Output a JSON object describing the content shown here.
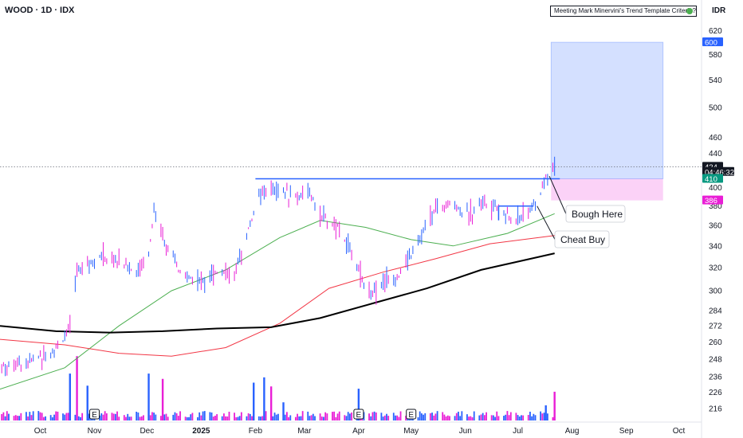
{
  "header": {
    "symbol_title": "WOOD · 1D · IDX",
    "currency": "IDR",
    "indicator_label": "Meeting Mark Minervini's Trend Template Criteria?"
  },
  "chart_data": {
    "type": "candlestick",
    "title": "WOOD · 1D · IDX",
    "y_scale": "log",
    "ylim": [
      208,
      640
    ],
    "y_ticks": [
      620,
      580,
      540,
      500,
      460,
      440,
      400,
      380,
      360,
      340,
      320,
      300,
      284,
      272,
      260,
      248,
      236,
      226,
      216
    ],
    "x_ticks": [
      "Oct",
      "Nov",
      "Dec",
      "2025",
      "Feb",
      "Mar",
      "Apr",
      "May",
      "Jun",
      "Jul",
      "Aug",
      "Sep",
      "Oct"
    ],
    "x_tick_dates": [
      "2024-10-01",
      "2024-11-01",
      "2024-12-01",
      "2025-01-01",
      "2025-02-01",
      "2025-03-01",
      "2025-04-01",
      "2025-05-01",
      "2025-06-01",
      "2025-07-01",
      "2025-08-01",
      "2025-09-01",
      "2025-10-01"
    ],
    "xlim": [
      "2024-09-08",
      "2025-10-14"
    ],
    "price_series": [
      {
        "date": "2024-09-09",
        "value": 243
      },
      {
        "date": "2024-09-23",
        "value": 246
      },
      {
        "date": "2024-10-07",
        "value": 252
      },
      {
        "date": "2024-10-14",
        "value": 262
      },
      {
        "date": "2024-10-18",
        "value": 270
      },
      {
        "date": "2024-10-22",
        "value": 318
      },
      {
        "date": "2024-10-28",
        "value": 325
      },
      {
        "date": "2024-11-05",
        "value": 330
      },
      {
        "date": "2024-11-15",
        "value": 326
      },
      {
        "date": "2024-11-25",
        "value": 316
      },
      {
        "date": "2024-12-02",
        "value": 333
      },
      {
        "date": "2024-12-05",
        "value": 375
      },
      {
        "date": "2024-12-12",
        "value": 340
      },
      {
        "date": "2024-12-20",
        "value": 315
      },
      {
        "date": "2024-12-30",
        "value": 308
      },
      {
        "date": "2025-01-10",
        "value": 318
      },
      {
        "date": "2025-01-20",
        "value": 312
      },
      {
        "date": "2025-01-27",
        "value": 350
      },
      {
        "date": "2025-02-03",
        "value": 392
      },
      {
        "date": "2025-02-14",
        "value": 398
      },
      {
        "date": "2025-02-24",
        "value": 390
      },
      {
        "date": "2025-03-03",
        "value": 395
      },
      {
        "date": "2025-03-10",
        "value": 370
      },
      {
        "date": "2025-03-20",
        "value": 357
      },
      {
        "date": "2025-03-28",
        "value": 335
      },
      {
        "date": "2025-04-03",
        "value": 310
      },
      {
        "date": "2025-04-08",
        "value": 298
      },
      {
        "date": "2025-04-15",
        "value": 308
      },
      {
        "date": "2025-04-25",
        "value": 315
      },
      {
        "date": "2025-05-05",
        "value": 345
      },
      {
        "date": "2025-05-15",
        "value": 378
      },
      {
        "date": "2025-05-25",
        "value": 382
      },
      {
        "date": "2025-06-02",
        "value": 370
      },
      {
        "date": "2025-06-10",
        "value": 385
      },
      {
        "date": "2025-06-20",
        "value": 378
      },
      {
        "date": "2025-06-27",
        "value": 365
      },
      {
        "date": "2025-07-05",
        "value": 372
      },
      {
        "date": "2025-07-10",
        "value": 380
      },
      {
        "date": "2025-07-14",
        "value": 395
      },
      {
        "date": "2025-07-18",
        "value": 415
      },
      {
        "date": "2025-07-22",
        "value": 424
      }
    ],
    "volume": {
      "spikes": [
        {
          "date": "2024-10-18",
          "level": 0.62
        },
        {
          "date": "2024-10-22",
          "level": 0.85
        },
        {
          "date": "2024-10-28",
          "level": 0.46
        },
        {
          "date": "2024-12-02",
          "level": 0.62
        },
        {
          "date": "2024-12-10",
          "level": 0.55
        },
        {
          "date": "2025-01-31",
          "level": 0.5
        },
        {
          "date": "2025-02-06",
          "level": 0.57
        },
        {
          "date": "2025-02-10",
          "level": 0.45
        },
        {
          "date": "2025-02-17",
          "level": 0.24
        },
        {
          "date": "2025-04-01",
          "level": 0.42
        },
        {
          "date": "2025-07-22",
          "level": 0.38
        },
        {
          "date": "2025-07-17",
          "level": 0.2
        }
      ],
      "base_level": 0.06
    },
    "moving_averages": [
      {
        "color": "#4caf50",
        "points": [
          {
            "date": "2024-09-08",
            "value": 228
          },
          {
            "date": "2024-10-15",
            "value": 242
          },
          {
            "date": "2024-11-15",
            "value": 272
          },
          {
            "date": "2024-12-15",
            "value": 300
          },
          {
            "date": "2025-01-15",
            "value": 318
          },
          {
            "date": "2025-02-15",
            "value": 348
          },
          {
            "date": "2025-03-10",
            "value": 365
          },
          {
            "date": "2025-04-05",
            "value": 358
          },
          {
            "date": "2025-05-01",
            "value": 346
          },
          {
            "date": "2025-05-25",
            "value": 340
          },
          {
            "date": "2025-06-25",
            "value": 352
          },
          {
            "date": "2025-07-22",
            "value": 372
          }
        ]
      },
      {
        "color": "#f23645",
        "points": [
          {
            "date": "2024-09-08",
            "value": 262
          },
          {
            "date": "2024-10-15",
            "value": 258
          },
          {
            "date": "2024-11-15",
            "value": 252
          },
          {
            "date": "2024-12-15",
            "value": 250
          },
          {
            "date": "2025-01-15",
            "value": 256
          },
          {
            "date": "2025-02-15",
            "value": 274
          },
          {
            "date": "2025-03-15",
            "value": 302
          },
          {
            "date": "2025-04-15",
            "value": 316
          },
          {
            "date": "2025-05-15",
            "value": 328
          },
          {
            "date": "2025-06-15",
            "value": 342
          },
          {
            "date": "2025-07-22",
            "value": 350
          }
        ]
      },
      {
        "color": "#000000",
        "points": [
          {
            "date": "2024-09-08",
            "value": 272
          },
          {
            "date": "2024-10-10",
            "value": 268
          },
          {
            "date": "2024-11-10",
            "value": 267
          },
          {
            "date": "2024-12-10",
            "value": 268
          },
          {
            "date": "2025-01-10",
            "value": 270
          },
          {
            "date": "2025-02-10",
            "value": 271
          },
          {
            "date": "2025-03-10",
            "value": 278
          },
          {
            "date": "2025-04-10",
            "value": 290
          },
          {
            "date": "2025-05-10",
            "value": 302
          },
          {
            "date": "2025-06-10",
            "value": 318
          },
          {
            "date": "2025-07-22",
            "value": 333
          }
        ]
      }
    ],
    "earnings_markers": [
      {
        "date": "2024-11-01",
        "label": "E"
      },
      {
        "date": "2025-04-01",
        "label": "E"
      },
      {
        "date": "2025-05-01",
        "label": "E"
      }
    ],
    "levels": {
      "resistance": {
        "value": 410,
        "from": "2025-02-01",
        "to": "2025-07-25"
      },
      "pivot": {
        "value": 380,
        "from": "2025-06-20",
        "to": "2025-07-10"
      },
      "target": 600,
      "entry": 410,
      "stop": 386,
      "last": 424,
      "position_from": "2025-07-20",
      "position_to": "2025-09-22"
    },
    "price_badges": [
      {
        "text": "600",
        "value": 600,
        "color": "#2962ff"
      },
      {
        "text": "424",
        "value": 424,
        "color": "#131722"
      },
      {
        "text": "04:46:32",
        "value": 418,
        "color": "#131722"
      },
      {
        "text": "410",
        "value": 410,
        "color": "#089981"
      },
      {
        "text": "386",
        "value": 386,
        "color": "#e91ed6"
      }
    ],
    "annotations": [
      {
        "text": "Bough Here",
        "date": "2025-07-19",
        "value": 413
      },
      {
        "text": "Cheat Buy",
        "date": "2025-07-12",
        "value": 380
      }
    ]
  }
}
